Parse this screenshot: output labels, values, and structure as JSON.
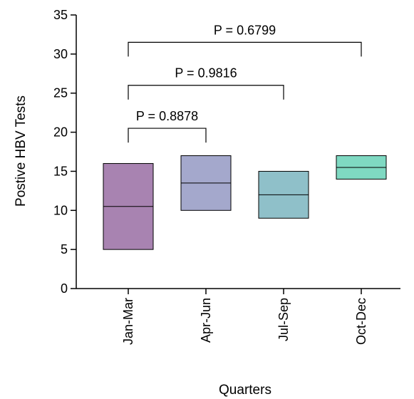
{
  "chart_data": {
    "type": "box",
    "title": "",
    "xlabel": "Quarters",
    "ylabel": "Postive HBV Tests",
    "ylim": [
      0,
      35
    ],
    "yticks": [
      "0",
      "5",
      "10",
      "15",
      "20",
      "25",
      "30",
      "35"
    ],
    "categories": [
      "Jan-Mar",
      "Apr-Jun",
      "Jul-Sep",
      "Oct-Dec"
    ],
    "boxes": [
      {
        "category": "Jan-Mar",
        "min": 5,
        "median": 10.5,
        "max": 16,
        "color": "#a883b1"
      },
      {
        "category": "Apr-Jun",
        "min": 10,
        "median": 13.5,
        "max": 17,
        "color": "#a4a8cc"
      },
      {
        "category": "Jul-Sep",
        "min": 9,
        "median": 12,
        "max": 15,
        "color": "#8fc0c9"
      },
      {
        "category": "Oct-Dec",
        "min": 14,
        "median": 15.5,
        "max": 17,
        "color": "#7fd9c2"
      }
    ],
    "comparisons": [
      {
        "from": "Jan-Mar",
        "to": "Apr-Jun",
        "label": "P = 0.8878",
        "y": 20.5
      },
      {
        "from": "Jan-Mar",
        "to": "Jul-Sep",
        "label": "P = 0.9816",
        "y": 26
      },
      {
        "from": "Jan-Mar",
        "to": "Oct-Dec",
        "label": "P = 0.6799",
        "y": 31.5
      }
    ],
    "grid": false,
    "legend": "none"
  }
}
